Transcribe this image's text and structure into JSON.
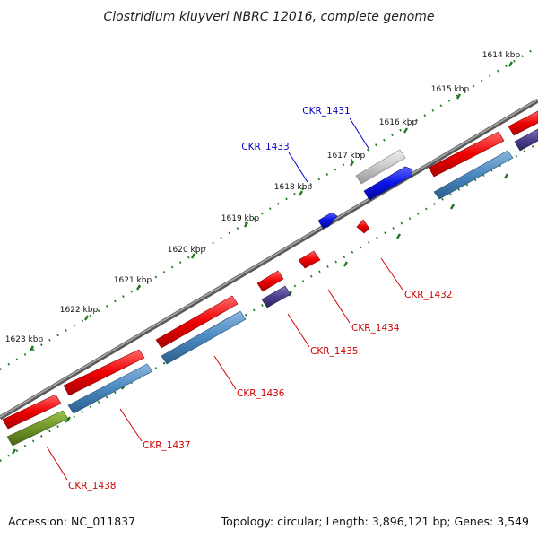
{
  "title": "Clostridium kluyveri NBRC 12016, complete genome",
  "footer": {
    "accession": "Accession: NC_011837",
    "summary": "Topology: circular; Length: 3,896,121 bp; Genes: 3,549"
  },
  "ruler": {
    "ticks": [
      "1614 kbp",
      "1615 kbp",
      "1616 kbp",
      "1617 kbp",
      "1618 kbp",
      "1619 kbp",
      "1620 kbp",
      "1621 kbp",
      "1622 kbp",
      "1623 kbp"
    ]
  },
  "genes": {
    "ckr_1431": "CKR_1431",
    "ckr_1432": "CKR_1432",
    "ckr_1433": "CKR_1433",
    "ckr_1434": "CKR_1434",
    "ckr_1435": "CKR_1435",
    "ckr_1436": "CKR_1436",
    "ckr_1437": "CKR_1437",
    "ckr_1438": "CKR_1438"
  },
  "colors": {
    "red": "#ee0000",
    "steel_blue": "#4a88c0",
    "royal_blue": "#0a14e6",
    "dark_slate": "#4a3f8c",
    "olive": "#6f9428",
    "gray": "#c8c8c8",
    "backbone": "#7a7a7a",
    "ruler": "#1f7a1f"
  }
}
